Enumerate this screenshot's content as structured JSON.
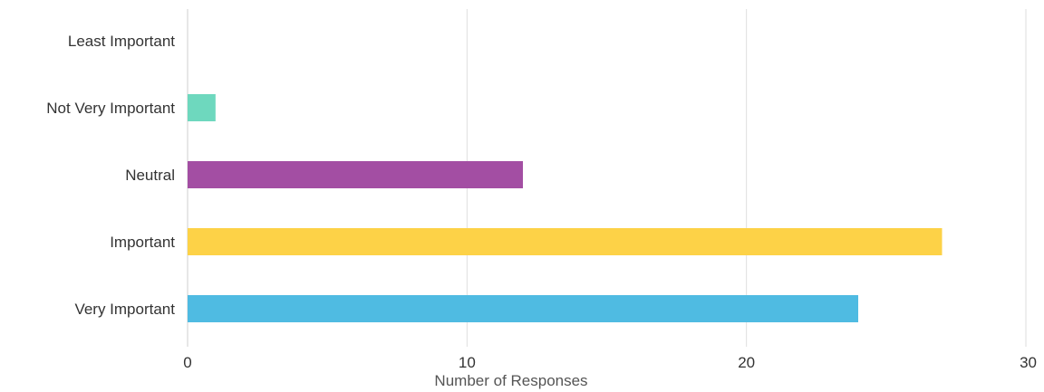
{
  "chart_data": {
    "type": "bar",
    "orientation": "horizontal",
    "categories": [
      "Least Important",
      "Not Very Important",
      "Neutral",
      "Important",
      "Very Important"
    ],
    "values": [
      0,
      1,
      12,
      27,
      24
    ],
    "colors": [
      "#4fc3e0",
      "#6ed8be",
      "#a34ea3",
      "#fdd247",
      "#4fbbe2"
    ],
    "xlabel": "Number of Responses",
    "ylabel": "",
    "xlim": [
      0,
      30
    ],
    "xticks": [
      "0",
      "10",
      "20",
      "30"
    ],
    "grid": true
  }
}
